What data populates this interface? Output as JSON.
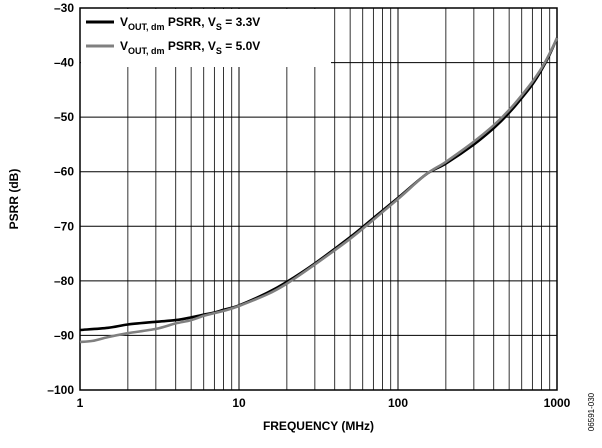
{
  "figure_code": "06591-030",
  "chart_data": {
    "type": "line",
    "xlabel": "FREQUENCY (MHz)",
    "ylabel": "PSRR (dB)",
    "x_scale": "log",
    "xlim": [
      1,
      1000
    ],
    "ylim": [
      -100,
      -30
    ],
    "grid": true,
    "legend_position": "top-left",
    "x_tick_labels": [
      "1",
      "10",
      "100",
      "1000"
    ],
    "y_tick_labels": [
      "–100",
      "–90",
      "–80",
      "–70",
      "–60",
      "–50",
      "–40",
      "–30"
    ],
    "y_ticks": [
      -100,
      -90,
      -80,
      -70,
      -60,
      -50,
      -40,
      -30
    ],
    "x_ticks": [
      1,
      10,
      100,
      1000
    ],
    "series": [
      {
        "name": "V_OUT, dm PSRR, V_S = 3.3V",
        "legend": {
          "main": "V",
          "sub1": "OUT, dm",
          "mid": " PSRR, V",
          "sub2": "S",
          "tail": " = 3.3V"
        },
        "color": "#000000",
        "x": [
          1,
          1.5,
          2,
          3,
          4,
          5,
          6,
          7,
          8,
          10,
          15,
          20,
          30,
          50,
          70,
          100,
          150,
          200,
          300,
          400,
          500,
          600,
          700,
          800,
          900,
          1000
        ],
        "values": [
          -89,
          -88.6,
          -88,
          -87.5,
          -87.2,
          -86.7,
          -86.2,
          -85.8,
          -85.3,
          -84.5,
          -82.2,
          -80.2,
          -76.8,
          -72.0,
          -68.5,
          -64.8,
          -60.5,
          -58.5,
          -55.0,
          -52.0,
          -49.2,
          -46.5,
          -44.0,
          -41.3,
          -38.5,
          -35.5
        ]
      },
      {
        "name": "V_OUT, dm PSRR, V_S = 5.0V",
        "legend": {
          "main": "V",
          "sub1": "OUT, dm",
          "mid": "  PSRR, V",
          "sub2": "S",
          "tail": " = 5.0V"
        },
        "color": "#808080",
        "x": [
          1,
          1.2,
          1.5,
          2,
          3,
          4,
          5,
          6,
          7,
          8,
          10,
          15,
          20,
          30,
          50,
          70,
          100,
          150,
          200,
          300,
          400,
          500,
          600,
          700,
          800,
          900,
          1000
        ],
        "values": [
          -91.2,
          -91.0,
          -90.3,
          -89.6,
          -88.8,
          -87.8,
          -87.2,
          -86.4,
          -85.9,
          -85.5,
          -84.6,
          -82.5,
          -80.5,
          -77.0,
          -72.3,
          -68.8,
          -65.0,
          -60.5,
          -58.2,
          -54.5,
          -51.5,
          -48.7,
          -46.0,
          -43.5,
          -41.0,
          -38.3,
          -35.5
        ]
      }
    ]
  }
}
